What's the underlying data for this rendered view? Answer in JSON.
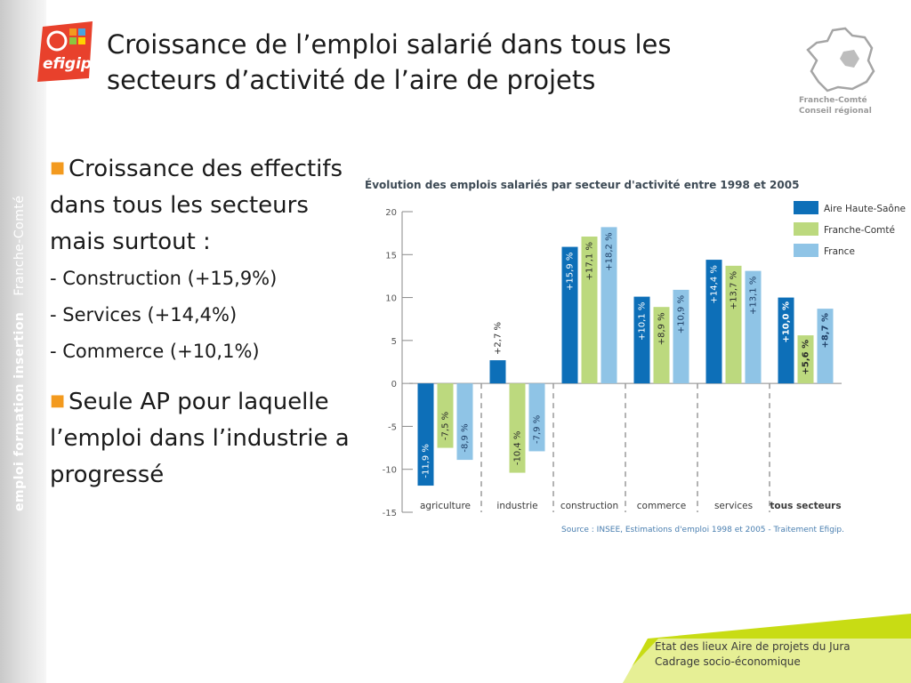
{
  "slide": {
    "title_line1": "Croissance de l’emploi salarié dans tous les",
    "title_line2": "secteurs d’activité de l’aire de projets",
    "brand": "efigip",
    "side_text": "emploi formation insertion",
    "side_region": "Franche-Comté",
    "region_logo_line1": "Franche-Comté",
    "region_logo_line2": "Conseil régional",
    "colors": {
      "accent": "#f39a1e",
      "lime": "#c8dc14",
      "logo_red": "#e8412c"
    }
  },
  "bullets": {
    "b1_text": "Croissance des effectifs dans tous les secteurs mais surtout :",
    "subs": [
      "- Construction (+15,9%)",
      "- Services (+14,4%)",
      "- Commerce (+10,1%)"
    ],
    "b2_text": "Seule AP pour laquelle l’emploi dans l’industrie a progressé"
  },
  "footer": {
    "line1": "Etat des lieux Aire de projets du Jura",
    "line2": "Cadrage socio-économique"
  },
  "chart_data": {
    "type": "bar",
    "title": "Évolution des emplois salariés par secteur d'activité entre 1998 et 2005",
    "source": "Source : INSEE, Estimations d'emploi 1998 et 2005 - Traitement Efigip.",
    "categories": [
      "agriculture",
      "industrie",
      "construction",
      "commerce",
      "services",
      "tous secteurs"
    ],
    "ylim": [
      -15,
      20
    ],
    "yticks": [
      20,
      15,
      10,
      5,
      0,
      -5,
      -10,
      -15
    ],
    "legend_position": "top-right",
    "series": [
      {
        "name": "Aire Haute-Saône",
        "color": "#0d6fb8",
        "values": [
          -11.9,
          2.7,
          15.9,
          10.1,
          14.4,
          10.0
        ],
        "labels": [
          "-11,9 %",
          "+2,7 %",
          "+15,9 %",
          "+10,1 %",
          "+14,4 %",
          "+10,0 %"
        ]
      },
      {
        "name": "Franche-Comté",
        "color": "#bcd97e",
        "values": [
          -7.5,
          -10.4,
          17.1,
          8.9,
          13.7,
          5.6
        ],
        "labels": [
          "-7,5 %",
          "-10,4 %",
          "+17,1 %",
          "+8,9 %",
          "+13,7 %",
          "+5,6 %"
        ]
      },
      {
        "name": "France",
        "color": "#8fc4e6",
        "values": [
          -8.9,
          -7.9,
          18.2,
          10.9,
          13.1,
          8.7
        ],
        "labels": [
          "-8,9 %",
          "-7,9 %",
          "+18,2 %",
          "+10,9 %",
          "+13,1 %",
          "+8,7 %"
        ]
      }
    ]
  }
}
